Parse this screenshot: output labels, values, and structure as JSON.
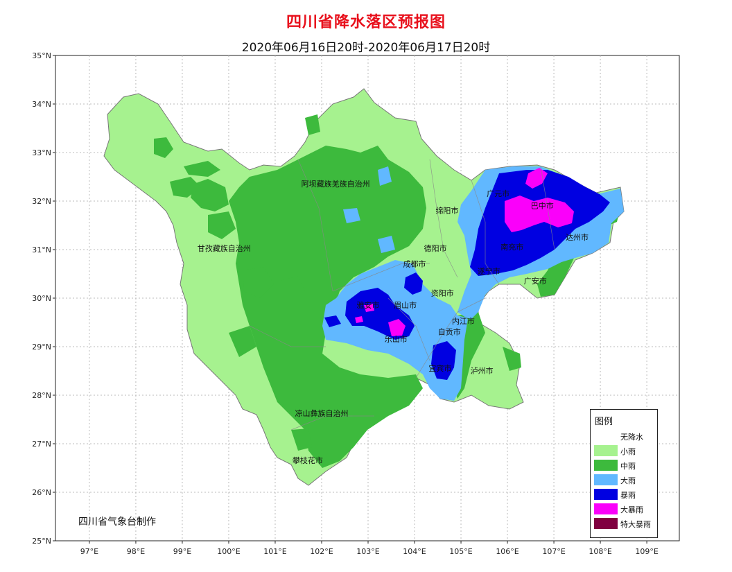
{
  "title": "四川省降水落区预报图",
  "subtitle": "2020年06月16日20时-2020年06月17日20时",
  "credit": "四川省气象台制作",
  "axes": {
    "lat_labels": [
      "35°N",
      "34°N",
      "33°N",
      "32°N",
      "31°N",
      "30°N",
      "29°N",
      "28°N",
      "27°N",
      "26°N",
      "25°N"
    ],
    "lon_labels": [
      "97°E",
      "98°E",
      "99°E",
      "100°E",
      "101°E",
      "102°E",
      "103°E",
      "104°E",
      "105°E",
      "106°E",
      "107°E",
      "108°E",
      "109°E"
    ]
  },
  "cities": [
    {
      "name": "阿坝藏族羌族自治州",
      "lon": 102.3,
      "lat": 32.3
    },
    {
      "name": "甘孜藏族自治州",
      "lon": 99.9,
      "lat": 30.97
    },
    {
      "name": "凉山彝族自治州",
      "lon": 102.0,
      "lat": 27.57
    },
    {
      "name": "攀枝花市",
      "lon": 101.7,
      "lat": 26.6
    },
    {
      "name": "绵阳市",
      "lon": 104.7,
      "lat": 31.75
    },
    {
      "name": "广元市",
      "lon": 105.8,
      "lat": 32.1
    },
    {
      "name": "巴中市",
      "lon": 106.75,
      "lat": 31.85
    },
    {
      "name": "达州市",
      "lon": 107.5,
      "lat": 31.2
    },
    {
      "name": "德阳市",
      "lon": 104.45,
      "lat": 30.97
    },
    {
      "name": "成都市",
      "lon": 104.0,
      "lat": 30.65
    },
    {
      "name": "南充市",
      "lon": 106.1,
      "lat": 31.0
    },
    {
      "name": "遂宁市",
      "lon": 105.6,
      "lat": 30.5
    },
    {
      "name": "广安市",
      "lon": 106.6,
      "lat": 30.3
    },
    {
      "name": "资阳市",
      "lon": 104.6,
      "lat": 30.05
    },
    {
      "name": "雅安市",
      "lon": 103.0,
      "lat": 29.8
    },
    {
      "name": "眉山市",
      "lon": 103.8,
      "lat": 29.8
    },
    {
      "name": "内江市",
      "lon": 105.05,
      "lat": 29.47
    },
    {
      "name": "乐山市",
      "lon": 103.6,
      "lat": 29.1
    },
    {
      "name": "自贡市",
      "lon": 104.75,
      "lat": 29.25
    },
    {
      "name": "宜宾市",
      "lon": 104.55,
      "lat": 28.5
    },
    {
      "name": "泸州市",
      "lon": 105.45,
      "lat": 28.45
    }
  ],
  "legend": {
    "title": "图例",
    "items": [
      {
        "label": "无降水",
        "color": "#ffffff"
      },
      {
        "label": "小雨",
        "color": "#a6f28f"
      },
      {
        "label": "中雨",
        "color": "#3dba3d"
      },
      {
        "label": "大雨",
        "color": "#61b8ff"
      },
      {
        "label": "暴雨",
        "color": "#0000e1"
      },
      {
        "label": "大暴雨",
        "color": "#fa00fa"
      },
      {
        "label": "特大暴雨",
        "color": "#800040"
      }
    ]
  }
}
